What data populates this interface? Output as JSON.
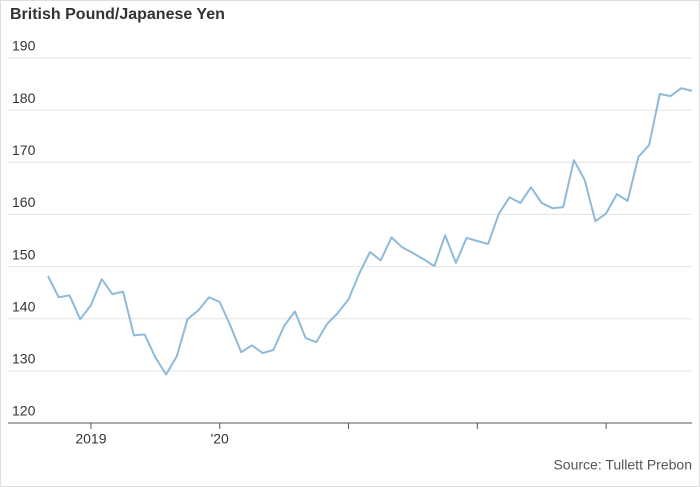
{
  "chart_data": {
    "type": "line",
    "title": "British Pound/Japanese Yen",
    "source": "Source: Tullett Prebon",
    "categories": [
      null,
      null,
      null,
      null,
      "2019",
      null,
      null,
      null,
      null,
      null,
      null,
      null,
      null,
      null,
      null,
      null,
      "'20",
      null,
      null,
      null,
      null,
      null,
      null,
      null,
      null,
      null,
      null,
      null,
      null,
      null,
      null,
      null,
      null,
      null,
      null,
      null,
      null,
      null,
      null,
      null,
      null,
      null,
      null,
      null,
      null,
      null,
      null,
      null,
      null,
      null,
      null,
      null,
      null,
      null,
      null,
      null,
      null,
      null,
      null,
      null,
      null
    ],
    "xticks": [
      4,
      16,
      28,
      40,
      52
    ],
    "series": [
      {
        "name": "GBP/JPY",
        "color": "#8fbad9",
        "values": [
          148.2,
          144.1,
          144.5,
          139.9,
          142.6,
          147.6,
          144.7,
          145.2,
          136.8,
          137,
          132.6,
          129.3,
          132.8,
          139.9,
          141.6,
          144.1,
          143.2,
          138.6,
          133.6,
          134.9,
          133.4,
          134,
          138.6,
          141.4,
          136.3,
          135.5,
          139,
          141.1,
          143.7,
          148.7,
          152.8,
          151.2,
          155.6,
          153.7,
          152.6,
          151.4,
          150.1,
          156,
          150.7,
          155.5,
          154.9,
          154.3,
          160.1,
          163.3,
          162.2,
          165.2,
          162.2,
          161.2,
          161.4,
          170.4,
          166.6,
          158.7,
          160.2,
          163.9,
          162.6,
          171,
          173.3,
          183.1,
          182.7,
          184.2,
          183.7
        ]
      }
    ],
    "ylim": [
      120,
      190
    ],
    "yticks": [
      120,
      130,
      140,
      150,
      160,
      170,
      180,
      190
    ],
    "grid": true
  }
}
